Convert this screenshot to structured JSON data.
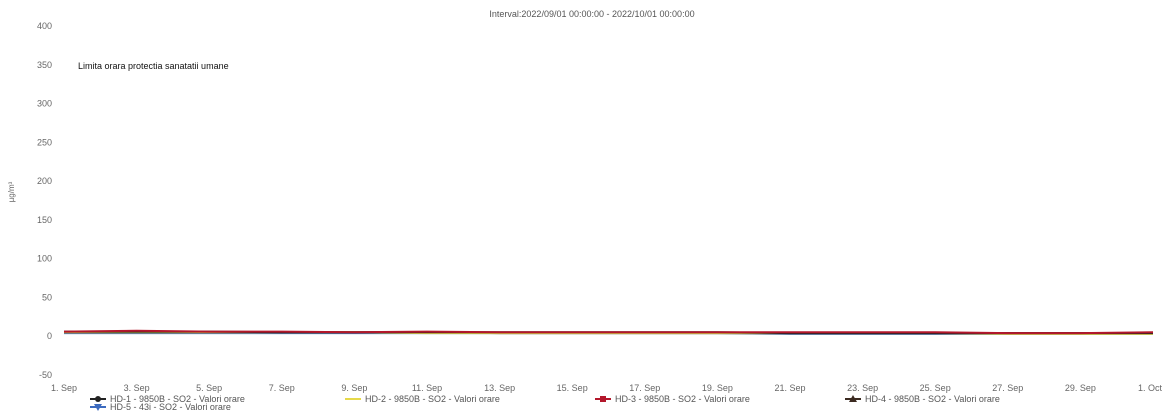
{
  "chart_data": {
    "type": "line",
    "title": "Interval:2022/09/01 00:00:00 - 2022/10/01 00:00:00",
    "ylabel": "µg/m³",
    "xlabel": "",
    "ylim": [
      -50,
      400
    ],
    "yticks": [
      -50,
      0,
      50,
      100,
      150,
      200,
      250,
      300,
      350,
      400
    ],
    "x_tick_labels": [
      "1. Sep",
      "3. Sep",
      "5. Sep",
      "7. Sep",
      "9. Sep",
      "11. Sep",
      "13. Sep",
      "15. Sep",
      "17. Sep",
      "19. Sep",
      "21. Sep",
      "23. Sep",
      "25. Sep",
      "27. Sep",
      "29. Sep",
      "1. Oct"
    ],
    "x_day_range": [
      1,
      31
    ],
    "grid": false,
    "annotation": {
      "text": "Limita orara protectia sanatatii umane",
      "value": 350
    },
    "legend_position": "bottom-left",
    "series": [
      {
        "name": "HD-1 - 9850B - SO2 - Valori orare",
        "color": "#222222",
        "marker": "circle",
        "x": [
          1,
          3,
          5,
          7,
          9,
          11,
          13,
          15,
          17,
          19,
          21,
          23,
          25,
          27,
          29,
          31
        ],
        "y": [
          6,
          6,
          6,
          5,
          5,
          5,
          5,
          5,
          5,
          5,
          4,
          4,
          4,
          4,
          4,
          4
        ]
      },
      {
        "name": "HD-2 - 9850B - SO2 - Valori orare",
        "color": "#e6d94a",
        "marker": "line",
        "x": [
          1,
          3,
          5,
          7,
          9,
          11,
          13,
          15,
          17,
          19,
          21,
          23,
          25,
          27,
          29,
          31
        ],
        "y": [
          5,
          5,
          5,
          5,
          5,
          4,
          4,
          4,
          4,
          4,
          4,
          4,
          4,
          3,
          3,
          3
        ]
      },
      {
        "name": "HD-3 - 9850B - SO2 - Valori orare",
        "color": "#b3172b",
        "marker": "square",
        "x": [
          1,
          3,
          5,
          7,
          9,
          11,
          13,
          15,
          17,
          19,
          21,
          23,
          25,
          27,
          29,
          31
        ],
        "y": [
          6,
          7,
          6,
          6,
          5,
          6,
          5,
          5,
          5,
          5,
          5,
          5,
          5,
          4,
          4,
          5
        ]
      },
      {
        "name": "HD-4 - 9850B - SO2 - Valori orare",
        "color": "#3b2a20",
        "marker": "triangle-up",
        "x": [
          1,
          3,
          5,
          7,
          9,
          11,
          13,
          15,
          17,
          19,
          21,
          23,
          25,
          27,
          29,
          31
        ],
        "y": [
          5,
          5,
          5,
          5,
          5,
          5,
          4,
          4,
          4,
          4,
          4,
          4,
          4,
          4,
          4,
          4
        ]
      },
      {
        "name": "HD-5 - 43i - SO2 - Valori orare",
        "color": "#3d6bbf",
        "marker": "triangle-down",
        "x": [
          1,
          3,
          5,
          7,
          9,
          11,
          13,
          15,
          17,
          19,
          21,
          23,
          25,
          27,
          29,
          31
        ],
        "y": [
          4,
          4,
          4,
          4,
          4,
          4,
          4,
          4,
          4,
          4,
          3,
          3,
          3,
          3,
          3,
          3
        ]
      }
    ]
  }
}
